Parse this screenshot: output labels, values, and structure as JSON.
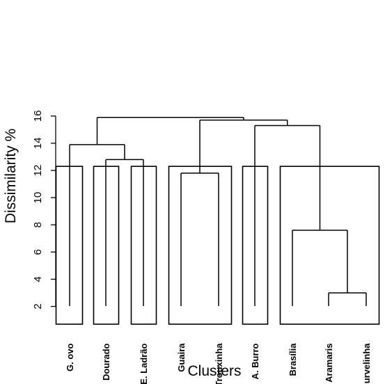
{
  "chart_data": {
    "type": "dendrogram",
    "xlabel": "Clusters",
    "ylabel": "Dissimilarity %",
    "ylim": [
      0,
      17
    ],
    "yticks": [
      2,
      4,
      6,
      8,
      10,
      12,
      14,
      16
    ],
    "grid": false,
    "legend": "none",
    "cut_height": 12.3,
    "leaves": [
      "G. ovo",
      "Dourado",
      "E. Ladrão",
      "Guaira",
      "Trouxinha",
      "A. Burro",
      "Brasília",
      "Aramaris",
      "Curvelinha"
    ],
    "merges": [
      {
        "left": "Aramaris",
        "right": "Curvelinha",
        "height": 3.0
      },
      {
        "left": "Brasília",
        "right": "Aramaris + Curvelinha",
        "height": 7.6
      },
      {
        "left": "Guaira",
        "right": "Trouxinha",
        "height": 11.8
      },
      {
        "left": "Dourado",
        "right": "E. Ladrão",
        "height": 12.8
      },
      {
        "left": "G. ovo",
        "right": "Dourado + E. Ladrão",
        "height": 13.9
      },
      {
        "left": "A. Burro",
        "right": "Brasília + Aramaris + Curvelinha",
        "height": 15.3
      },
      {
        "left": "Guaira + Trouxinha",
        "right": "A. Burro + Brasília + Aramaris + Curvelinha",
        "height": 15.7
      },
      {
        "left": "G. ovo + Dourado + E. Ladrão",
        "right": "Guaira + Trouxinha + A. Burro + Brasília + Aramaris + Curvelinha",
        "height": 15.9
      }
    ],
    "clusters": [
      [
        "G. ovo"
      ],
      [
        "Dourado"
      ],
      [
        "E. Ladrão"
      ],
      [
        "Guaira",
        "Trouxinha"
      ],
      [
        "A. Burro"
      ],
      [
        "Brasília",
        "Aramaris",
        "Curvelinha"
      ]
    ]
  }
}
